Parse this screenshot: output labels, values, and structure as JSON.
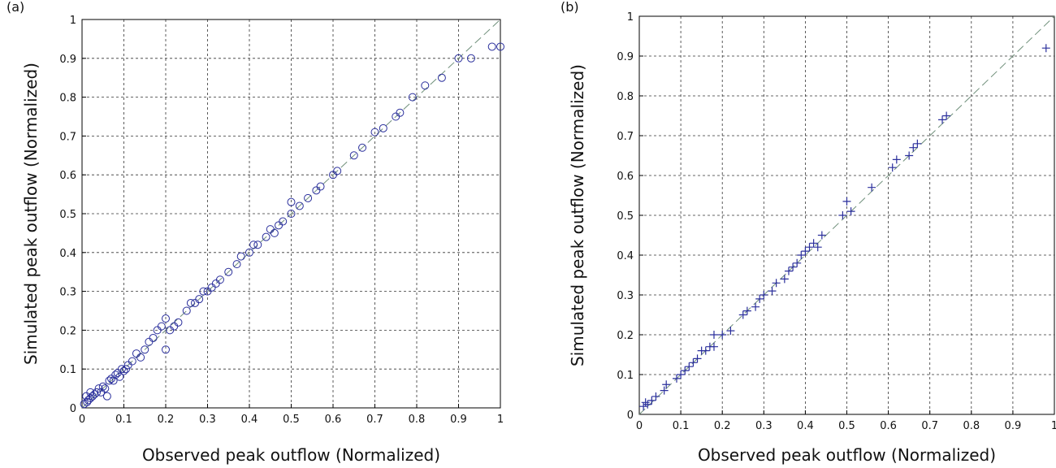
{
  "chart_data": [
    {
      "type": "scatter",
      "panel_label": "(a)",
      "x_label": "Observed peak outflow (Normalized)",
      "y_label": "Simulated peak outflow (Normalized)",
      "marker": "circle",
      "color": "#2a2f9c",
      "identity_line": true,
      "grid": true,
      "xlim": [
        0,
        1
      ],
      "ylim": [
        0,
        1
      ],
      "xticks": [
        0,
        0.1,
        0.2,
        0.3,
        0.4,
        0.5,
        0.6,
        0.7,
        0.8,
        0.9,
        1
      ],
      "yticks": [
        0,
        0.1,
        0.2,
        0.3,
        0.4,
        0.5,
        0.6,
        0.7,
        0.8,
        0.9,
        1
      ],
      "x": [
        0.005,
        0.01,
        0.012,
        0.015,
        0.02,
        0.02,
        0.025,
        0.03,
        0.035,
        0.04,
        0.045,
        0.05,
        0.055,
        0.06,
        0.065,
        0.07,
        0.075,
        0.08,
        0.085,
        0.09,
        0.095,
        0.1,
        0.105,
        0.11,
        0.12,
        0.13,
        0.14,
        0.15,
        0.16,
        0.17,
        0.18,
        0.19,
        0.2,
        0.2,
        0.21,
        0.22,
        0.23,
        0.25,
        0.26,
        0.27,
        0.28,
        0.29,
        0.3,
        0.31,
        0.32,
        0.33,
        0.35,
        0.37,
        0.38,
        0.4,
        0.41,
        0.42,
        0.44,
        0.45,
        0.46,
        0.47,
        0.48,
        0.5,
        0.5,
        0.52,
        0.54,
        0.56,
        0.57,
        0.6,
        0.61,
        0.65,
        0.67,
        0.7,
        0.72,
        0.75,
        0.76,
        0.79,
        0.82,
        0.86,
        0.9,
        0.93,
        0.98,
        1.0
      ],
      "values": [
        0.01,
        0.03,
        0.015,
        0.02,
        0.025,
        0.04,
        0.03,
        0.035,
        0.04,
        0.05,
        0.04,
        0.055,
        0.05,
        0.03,
        0.07,
        0.075,
        0.07,
        0.085,
        0.09,
        0.08,
        0.1,
        0.095,
        0.1,
        0.11,
        0.12,
        0.14,
        0.13,
        0.15,
        0.17,
        0.18,
        0.2,
        0.21,
        0.23,
        0.15,
        0.2,
        0.21,
        0.22,
        0.25,
        0.27,
        0.27,
        0.28,
        0.3,
        0.3,
        0.31,
        0.32,
        0.33,
        0.35,
        0.37,
        0.39,
        0.4,
        0.42,
        0.42,
        0.44,
        0.46,
        0.45,
        0.47,
        0.48,
        0.5,
        0.53,
        0.52,
        0.54,
        0.56,
        0.57,
        0.6,
        0.61,
        0.65,
        0.67,
        0.71,
        0.72,
        0.75,
        0.76,
        0.8,
        0.83,
        0.85,
        0.9,
        0.9,
        0.93,
        0.93
      ]
    },
    {
      "type": "scatter",
      "panel_label": "(b)",
      "x_label": "Observed peak outflow (Normalized)",
      "y_label": "Simulated peak outflow (Normalized)",
      "marker": "plus",
      "color": "#2a2f9c",
      "identity_line": true,
      "grid": true,
      "xlim": [
        0,
        1
      ],
      "ylim": [
        0,
        1
      ],
      "xticks": [
        0,
        0.1,
        0.2,
        0.3,
        0.4,
        0.5,
        0.6,
        0.7,
        0.8,
        0.9,
        1
      ],
      "yticks": [
        0,
        0.1,
        0.2,
        0.3,
        0.4,
        0.5,
        0.6,
        0.7,
        0.8,
        0.9,
        1
      ],
      "x": [
        0.01,
        0.015,
        0.02,
        0.03,
        0.04,
        0.06,
        0.065,
        0.09,
        0.1,
        0.11,
        0.12,
        0.13,
        0.14,
        0.15,
        0.16,
        0.17,
        0.18,
        0.18,
        0.2,
        0.22,
        0.25,
        0.26,
        0.28,
        0.29,
        0.3,
        0.32,
        0.33,
        0.35,
        0.36,
        0.37,
        0.38,
        0.39,
        0.4,
        0.41,
        0.42,
        0.43,
        0.44,
        0.49,
        0.5,
        0.51,
        0.56,
        0.61,
        0.62,
        0.65,
        0.66,
        0.67,
        0.73,
        0.74,
        0.98
      ],
      "values": [
        0.02,
        0.03,
        0.025,
        0.035,
        0.045,
        0.06,
        0.075,
        0.09,
        0.1,
        0.11,
        0.12,
        0.13,
        0.14,
        0.16,
        0.16,
        0.17,
        0.17,
        0.2,
        0.2,
        0.21,
        0.25,
        0.26,
        0.27,
        0.29,
        0.3,
        0.31,
        0.33,
        0.34,
        0.36,
        0.37,
        0.38,
        0.4,
        0.41,
        0.42,
        0.43,
        0.42,
        0.45,
        0.5,
        0.535,
        0.51,
        0.57,
        0.62,
        0.64,
        0.65,
        0.67,
        0.68,
        0.74,
        0.75,
        0.92
      ]
    }
  ]
}
